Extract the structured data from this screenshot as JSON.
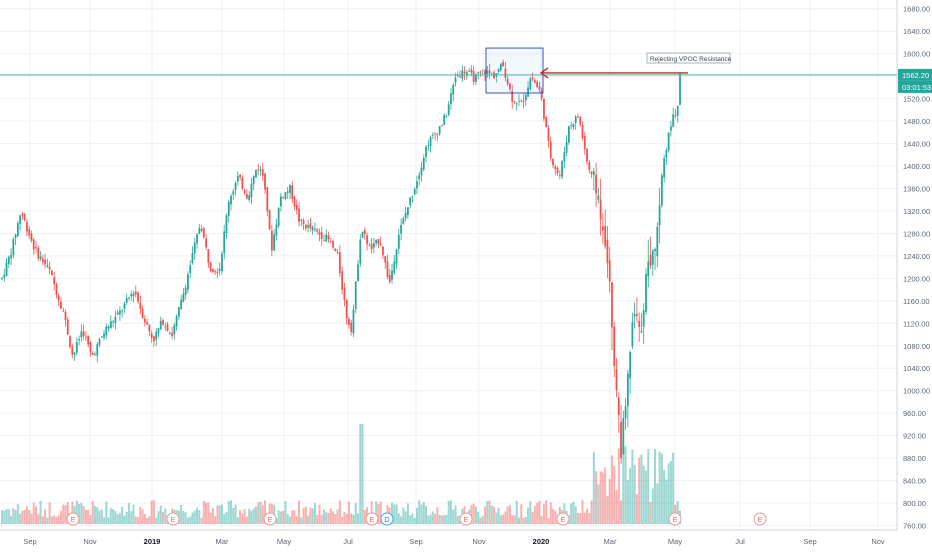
{
  "chart_data": {
    "type": "candlestick",
    "symbol": "",
    "title": "",
    "y_ticks": [
      760,
      800,
      840,
      880,
      920,
      960,
      1000,
      1040,
      1080,
      1120,
      1160,
      1200,
      1240,
      1280,
      1320,
      1360,
      1400,
      1440,
      1480,
      1520,
      1560,
      1600,
      1640,
      1680
    ],
    "y_tick_labels": [
      "760.00",
      "800.00",
      "840.00",
      "880.00",
      "920.00",
      "960.00",
      "1000.00",
      "1040.00",
      "1080.00",
      "1120.00",
      "1160.00",
      "1200.00",
      "1240.00",
      "1280.00",
      "1320.00",
      "1360.00",
      "1400.00",
      "1440.00",
      "1480.00",
      "1520.00",
      "1560.00",
      "1600.00",
      "1640.00",
      "1680.00"
    ],
    "ylim": [
      752,
      1692
    ],
    "x_tick_labels": [
      "Sep",
      "Nov",
      "2019",
      "Mar",
      "May",
      "Jul",
      "Sep",
      "Nov",
      "2020",
      "Mar",
      "May",
      "Jul",
      "Sep",
      "Nov"
    ],
    "bold_x_ticks": [
      "2019",
      "2020"
    ],
    "current_price_label": "1562.20",
    "current_price": 1562.2,
    "countdown_label": "03:01:53",
    "resistance_level": 1562.2,
    "annotation": {
      "text": "Rejecting VPOC Resistance",
      "target_price": 1562.2
    },
    "vpoc_box": {
      "price_low": 1530,
      "price_high": 1610
    },
    "earnings_markers": [
      {
        "label": "E",
        "kind": "earnings"
      },
      {
        "label": "E",
        "kind": "earnings"
      },
      {
        "label": "E",
        "kind": "earnings"
      },
      {
        "label": "E",
        "kind": "earnings"
      },
      {
        "label": "D",
        "kind": "dividend"
      },
      {
        "label": "E",
        "kind": "earnings"
      },
      {
        "label": "E",
        "kind": "earnings"
      },
      {
        "label": "E",
        "kind": "earnings"
      },
      {
        "label": "E",
        "kind": "future-earnings"
      }
    ],
    "price_path_points": [
      {
        "t": 0,
        "p": 1200
      },
      {
        "t": 4,
        "p": 1250
      },
      {
        "t": 8,
        "p": 1320
      },
      {
        "t": 14,
        "p": 1250
      },
      {
        "t": 20,
        "p": 1215
      },
      {
        "t": 26,
        "p": 1140
      },
      {
        "t": 30,
        "p": 1060
      },
      {
        "t": 34,
        "p": 1110
      },
      {
        "t": 38,
        "p": 1060
      },
      {
        "t": 44,
        "p": 1110
      },
      {
        "t": 50,
        "p": 1140
      },
      {
        "t": 56,
        "p": 1180
      },
      {
        "t": 60,
        "p": 1130
      },
      {
        "t": 64,
        "p": 1090
      },
      {
        "t": 68,
        "p": 1125
      },
      {
        "t": 72,
        "p": 1100
      },
      {
        "t": 76,
        "p": 1160
      },
      {
        "t": 80,
        "p": 1230
      },
      {
        "t": 84,
        "p": 1300
      },
      {
        "t": 88,
        "p": 1220
      },
      {
        "t": 92,
        "p": 1215
      },
      {
        "t": 96,
        "p": 1340
      },
      {
        "t": 100,
        "p": 1380
      },
      {
        "t": 104,
        "p": 1345
      },
      {
        "t": 108,
        "p": 1400
      },
      {
        "t": 111,
        "p": 1380
      },
      {
        "t": 114,
        "p": 1250
      },
      {
        "t": 118,
        "p": 1345
      },
      {
        "t": 122,
        "p": 1360
      },
      {
        "t": 126,
        "p": 1300
      },
      {
        "t": 130,
        "p": 1290
      },
      {
        "t": 134,
        "p": 1280
      },
      {
        "t": 138,
        "p": 1270
      },
      {
        "t": 142,
        "p": 1240
      },
      {
        "t": 146,
        "p": 1130
      },
      {
        "t": 148,
        "p": 1110
      },
      {
        "t": 152,
        "p": 1290
      },
      {
        "t": 156,
        "p": 1250
      },
      {
        "t": 160,
        "p": 1270
      },
      {
        "t": 164,
        "p": 1190
      },
      {
        "t": 168,
        "p": 1280
      },
      {
        "t": 172,
        "p": 1330
      },
      {
        "t": 176,
        "p": 1380
      },
      {
        "t": 180,
        "p": 1440
      },
      {
        "t": 184,
        "p": 1460
      },
      {
        "t": 188,
        "p": 1490
      },
      {
        "t": 192,
        "p": 1560
      },
      {
        "t": 196,
        "p": 1570
      },
      {
        "t": 200,
        "p": 1555
      },
      {
        "t": 204,
        "p": 1570
      },
      {
        "t": 208,
        "p": 1560
      },
      {
        "t": 212,
        "p": 1580
      },
      {
        "t": 216,
        "p": 1520
      },
      {
        "t": 220,
        "p": 1510
      },
      {
        "t": 224,
        "p": 1560
      },
      {
        "t": 228,
        "p": 1530
      },
      {
        "t": 232,
        "p": 1420
      },
      {
        "t": 236,
        "p": 1380
      },
      {
        "t": 240,
        "p": 1470
      },
      {
        "t": 244,
        "p": 1490
      },
      {
        "t": 248,
        "p": 1400
      },
      {
        "t": 252,
        "p": 1350
      },
      {
        "t": 254,
        "p": 1310
      },
      {
        "t": 256,
        "p": 1260
      },
      {
        "t": 258,
        "p": 1130
      },
      {
        "t": 260,
        "p": 1010
      },
      {
        "t": 262,
        "p": 900
      },
      {
        "t": 264,
        "p": 960
      },
      {
        "t": 266,
        "p": 1080
      },
      {
        "t": 268,
        "p": 1140
      },
      {
        "t": 270,
        "p": 1090
      },
      {
        "t": 272,
        "p": 1180
      },
      {
        "t": 274,
        "p": 1230
      },
      {
        "t": 276,
        "p": 1250
      },
      {
        "t": 278,
        "p": 1320
      },
      {
        "t": 280,
        "p": 1410
      },
      {
        "t": 282,
        "p": 1450
      },
      {
        "t": 284,
        "p": 1490
      },
      {
        "t": 286,
        "p": 1500
      },
      {
        "t": 287,
        "p": 1560
      }
    ]
  }
}
